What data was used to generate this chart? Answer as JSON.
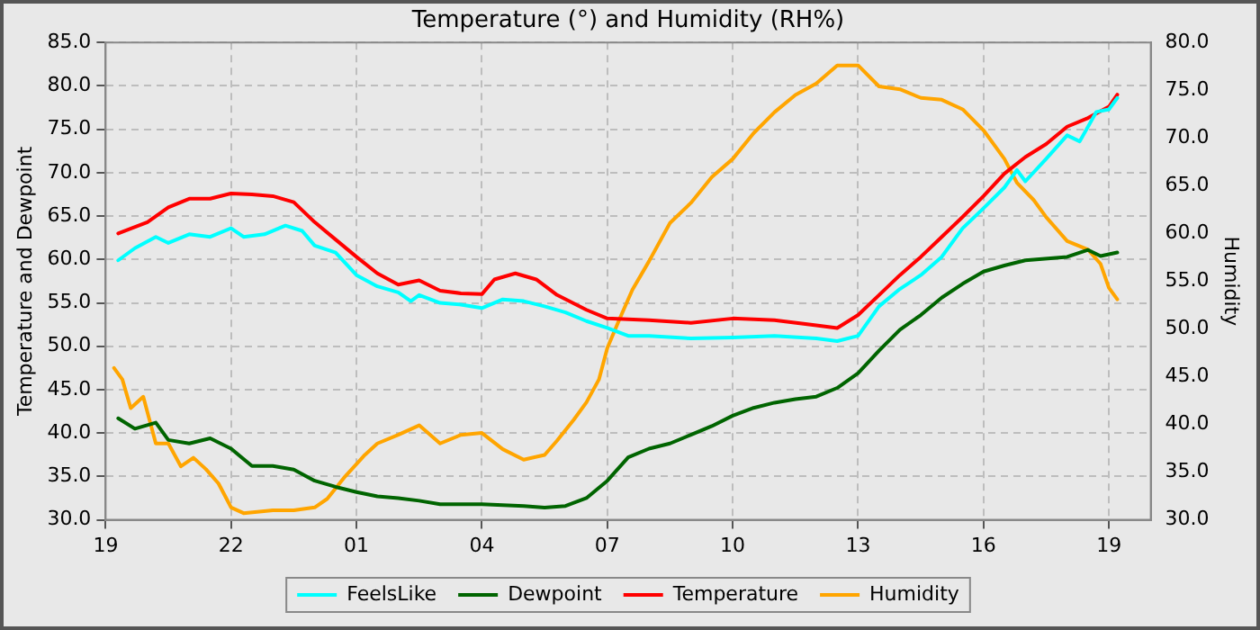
{
  "chart_data": {
    "type": "line",
    "title": "Temperature (°) and Humidity (RH%)",
    "ylabel": "Temperature and Dewpoint",
    "y2label": "Humidity",
    "xlim": [
      "--01-01T19:00",
      "--01-02T20:00"
    ],
    "xticks": [
      {
        "value": "--01-01T19:00",
        "label": "19"
      },
      {
        "value": "--01-01T22:00",
        "label": "22"
      },
      {
        "value": "--01-02T01:00",
        "label": "01"
      },
      {
        "value": "--01-02T04:00",
        "label": "04"
      },
      {
        "value": "--01-02T07:00",
        "label": "07"
      },
      {
        "value": "--01-02T10:00",
        "label": "10"
      },
      {
        "value": "--01-02T13:00",
        "label": "13"
      },
      {
        "value": "--01-02T16:00",
        "label": "16"
      },
      {
        "value": "--01-02T19:00",
        "label": "19"
      }
    ],
    "ylim": [
      30,
      85
    ],
    "yticks": [
      {
        "value": 30,
        "label": "30.0"
      },
      {
        "value": 35,
        "label": "35.0"
      },
      {
        "value": 40,
        "label": "40.0"
      },
      {
        "value": 45,
        "label": "45.0"
      },
      {
        "value": 50,
        "label": "50.0"
      },
      {
        "value": 55,
        "label": "55.0"
      },
      {
        "value": 60,
        "label": "60.0"
      },
      {
        "value": 65,
        "label": "65.0"
      },
      {
        "value": 70,
        "label": "70.0"
      },
      {
        "value": 75,
        "label": "75.0"
      },
      {
        "value": 80,
        "label": "80.0"
      },
      {
        "value": 85,
        "label": "85.0"
      }
    ],
    "y2lim": [
      30,
      80
    ],
    "y2ticks": [
      {
        "value": 30,
        "label": "30.0"
      },
      {
        "value": 35,
        "label": "35.0"
      },
      {
        "value": 40,
        "label": "40.0"
      },
      {
        "value": 45,
        "label": "45.0"
      },
      {
        "value": 50,
        "label": "50.0"
      },
      {
        "value": 55,
        "label": "55.0"
      },
      {
        "value": 60,
        "label": "60.0"
      },
      {
        "value": 65,
        "label": "65.0"
      },
      {
        "value": 70,
        "label": "70.0"
      },
      {
        "value": 75,
        "label": "75.0"
      },
      {
        "value": 80,
        "label": "80.0"
      }
    ],
    "grid": true,
    "legend": "bottom",
    "marker": "none",
    "line_style": "solid",
    "series": [
      {
        "name": "FeelsLike",
        "color": "#00ffff",
        "x": [
          "--01-01T19:18",
          "--01-01T19:42",
          "--01-01T20:12",
          "--01-01T20:30",
          "--01-01T21:00",
          "--01-01T21:30",
          "--01-01T22:00",
          "--01-01T22:18",
          "--01-01T22:48",
          "--01-01T23:18",
          "--01-01T23:42",
          "--01-02T00:00",
          "--01-02T00:30",
          "--01-02T01:00",
          "--01-02T01:30",
          "--01-02T02:00",
          "--01-02T02:18",
          "--01-02T02:30",
          "--01-02T03:00",
          "--01-02T03:30",
          "--01-02T04:00",
          "--01-02T04:30",
          "--01-02T05:00",
          "--01-02T05:30",
          "--01-02T06:00",
          "--01-02T06:30",
          "--01-02T07:00",
          "--01-02T07:30",
          "--01-02T08:00",
          "--01-02T09:00",
          "--01-02T10:00",
          "--01-02T11:00",
          "--01-02T12:00",
          "--01-02T12:30",
          "--01-02T13:00",
          "--01-02T13:30",
          "--01-02T14:00",
          "--01-02T14:30",
          "--01-02T15:00",
          "--01-02T15:30",
          "--01-02T16:00",
          "--01-02T16:30",
          "--01-02T16:48",
          "--01-02T17:00",
          "--01-02T17:30",
          "--01-02T18:00",
          "--01-02T18:18",
          "--01-02T18:42",
          "--01-02T19:00",
          "--01-02T19:12"
        ],
        "values": [
          59.9,
          61.3,
          62.6,
          61.9,
          62.9,
          62.6,
          63.6,
          62.6,
          62.9,
          63.9,
          63.3,
          61.6,
          60.8,
          58.2,
          56.9,
          56.2,
          55.2,
          55.9,
          55,
          54.8,
          54.4,
          55.4,
          55.2,
          54.6,
          53.9,
          52.9,
          52.1,
          51.2,
          51.2,
          50.9,
          51,
          51.2,
          50.9,
          50.6,
          51.2,
          54.6,
          56.6,
          58.2,
          60.3,
          63.6,
          65.9,
          68.3,
          70.3,
          69,
          71.6,
          74.3,
          73.6,
          77,
          77.3,
          78.6
        ]
      },
      {
        "name": "Dewpoint",
        "color": "#006400",
        "x": [
          "--01-01T19:18",
          "--01-01T19:42",
          "--01-01T20:12",
          "--01-01T20:30",
          "--01-01T21:00",
          "--01-01T21:30",
          "--01-01T22:00",
          "--01-01T22:30",
          "--01-01T23:00",
          "--01-01T23:30",
          "--01-02T00:00",
          "--01-02T00:30",
          "--01-02T01:00",
          "--01-02T01:30",
          "--01-02T02:00",
          "--01-02T02:30",
          "--01-02T03:00",
          "--01-02T04:00",
          "--01-02T05:00",
          "--01-02T05:30",
          "--01-02T06:00",
          "--01-02T06:30",
          "--01-02T07:00",
          "--01-02T07:30",
          "--01-02T08:00",
          "--01-02T08:30",
          "--01-02T09:00",
          "--01-02T09:30",
          "--01-02T10:00",
          "--01-02T10:30",
          "--01-02T11:00",
          "--01-02T11:30",
          "--01-02T12:00",
          "--01-02T12:30",
          "--01-02T13:00",
          "--01-02T13:30",
          "--01-02T14:00",
          "--01-02T14:30",
          "--01-02T15:00",
          "--01-02T15:30",
          "--01-02T16:00",
          "--01-02T16:30",
          "--01-02T17:00",
          "--01-02T18:00",
          "--01-02T18:30",
          "--01-02T18:48",
          "--01-02T19:12"
        ],
        "values": [
          41.7,
          40.5,
          41.2,
          39.2,
          38.8,
          39.4,
          38.2,
          36.2,
          36.2,
          35.8,
          34.5,
          33.8,
          33.2,
          32.7,
          32.5,
          32.2,
          31.8,
          31.8,
          31.6,
          31.4,
          31.6,
          32.5,
          34.5,
          37.2,
          38.2,
          38.8,
          39.8,
          40.8,
          42,
          42.9,
          43.5,
          43.9,
          44.2,
          45.2,
          46.9,
          49.5,
          51.9,
          53.6,
          55.6,
          57.2,
          58.6,
          59.3,
          59.9,
          60.3,
          61.1,
          60.4,
          60.8
        ]
      },
      {
        "name": "Temperature",
        "color": "#ff0000",
        "x": [
          "--01-01T19:18",
          "--01-01T20:00",
          "--01-01T20:30",
          "--01-01T21:00",
          "--01-01T21:30",
          "--01-01T22:00",
          "--01-01T22:30",
          "--01-01T23:00",
          "--01-01T23:30",
          "--01-02T00:00",
          "--01-02T00:30",
          "--01-02T01:00",
          "--01-02T01:30",
          "--01-02T02:00",
          "--01-02T02:30",
          "--01-02T03:00",
          "--01-02T03:30",
          "--01-02T04:00",
          "--01-02T04:18",
          "--01-02T04:48",
          "--01-02T05:18",
          "--01-02T05:48",
          "--01-02T06:30",
          "--01-02T07:00",
          "--01-02T08:00",
          "--01-02T09:00",
          "--01-02T10:00",
          "--01-02T11:00",
          "--01-02T12:00",
          "--01-02T12:30",
          "--01-02T13:00",
          "--01-02T13:30",
          "--01-02T14:00",
          "--01-02T14:30",
          "--01-02T15:00",
          "--01-02T15:30",
          "--01-02T16:00",
          "--01-02T16:30",
          "--01-02T17:00",
          "--01-02T17:30",
          "--01-02T18:00",
          "--01-02T18:30",
          "--01-02T19:00",
          "--01-02T19:12"
        ],
        "values": [
          63,
          64.3,
          66,
          67,
          67,
          67.6,
          67.5,
          67.3,
          66.6,
          64.3,
          62.3,
          60.3,
          58.4,
          57.1,
          57.6,
          56.4,
          56.1,
          56,
          57.7,
          58.4,
          57.7,
          55.9,
          54.2,
          53.2,
          53,
          52.7,
          53.2,
          53,
          52.4,
          52.1,
          53.6,
          55.9,
          58.2,
          60.3,
          62.6,
          64.9,
          67.3,
          69.9,
          71.8,
          73.3,
          75.3,
          76.3,
          77.6,
          79
        ]
      },
      {
        "name": "Humidity",
        "color": "#ffa500",
        "axis": "y2",
        "x": [
          "--01-01T19:12",
          "--01-01T19:24",
          "--01-01T19:36",
          "--01-01T19:54",
          "--01-01T20:12",
          "--01-01T20:30",
          "--01-01T20:48",
          "--01-01T21:06",
          "--01-01T21:24",
          "--01-01T21:42",
          "--01-01T22:00",
          "--01-01T22:18",
          "--01-01T23:00",
          "--01-01T23:30",
          "--01-02T00:00",
          "--01-02T00:18",
          "--01-02T00:42",
          "--01-02T01:12",
          "--01-02T01:30",
          "--01-02T02:00",
          "--01-02T02:30",
          "--01-02T03:00",
          "--01-02T03:30",
          "--01-02T04:00",
          "--01-02T04:30",
          "--01-02T05:00",
          "--01-02T05:30",
          "--01-02T05:48",
          "--01-02T06:12",
          "--01-02T06:30",
          "--01-02T06:48",
          "--01-02T07:00",
          "--01-02T07:18",
          "--01-02T07:36",
          "--01-02T08:00",
          "--01-02T08:30",
          "--01-02T09:00",
          "--01-02T09:30",
          "--01-02T10:00",
          "--01-02T10:30",
          "--01-02T11:00",
          "--01-02T11:30",
          "--01-02T12:00",
          "--01-02T12:30",
          "--01-02T13:00",
          "--01-02T13:30",
          "--01-02T14:00",
          "--01-02T14:30",
          "--01-02T15:00",
          "--01-02T15:30",
          "--01-02T16:00",
          "--01-02T16:30",
          "--01-02T16:48",
          "--01-02T17:12",
          "--01-02T17:30",
          "--01-02T18:00",
          "--01-02T18:30",
          "--01-02T18:48",
          "--01-02T19:00",
          "--01-02T19:12"
        ],
        "values": [
          45.9,
          44.7,
          41.7,
          42.9,
          38,
          38,
          35.6,
          36.5,
          35.3,
          33.8,
          31.3,
          30.7,
          31,
          31,
          31.3,
          32.2,
          34.4,
          36.8,
          38,
          38.9,
          39.9,
          38,
          38.9,
          39.1,
          37.4,
          36.3,
          36.8,
          38.3,
          40.5,
          42.3,
          44.7,
          48,
          51.1,
          54.1,
          57.1,
          61.1,
          63.2,
          65.9,
          67.8,
          70.5,
          72.7,
          74.5,
          75.7,
          77.6,
          77.6,
          75.4,
          75.1,
          74.2,
          74,
          73,
          70.8,
          67.8,
          65.3,
          63.5,
          61.7,
          59.2,
          58.3,
          56.8,
          54.3,
          53.1
        ]
      }
    ]
  }
}
